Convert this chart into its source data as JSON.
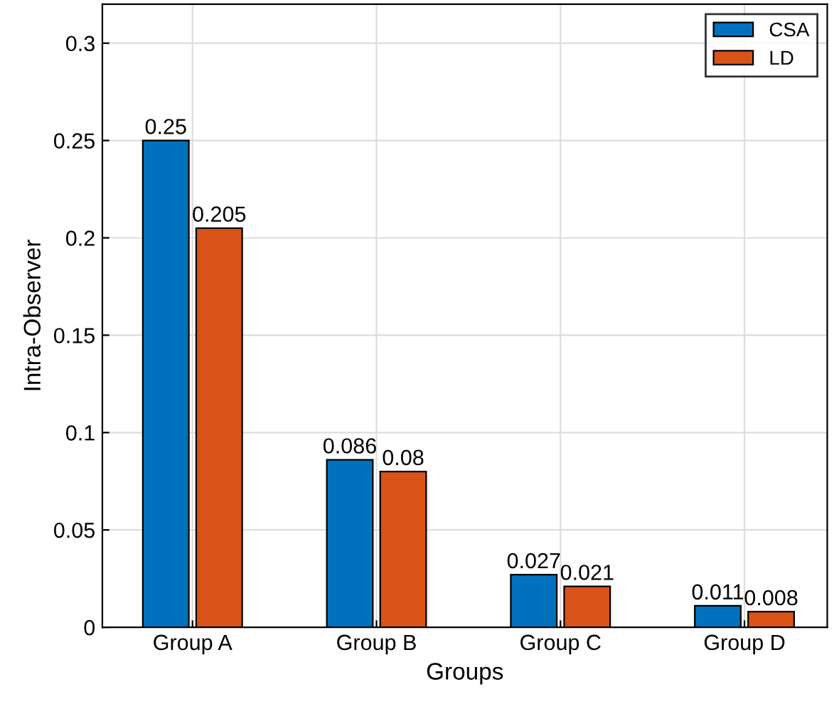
{
  "chart_data": {
    "type": "bar",
    "xlabel": "Groups",
    "ylabel": "Intra-Observer",
    "categories": [
      "Group A",
      "Group B",
      "Group C",
      "Group D"
    ],
    "series": [
      {
        "name": "CSA",
        "color": "#0072bd",
        "values": [
          0.25,
          0.086,
          0.027,
          0.011
        ]
      },
      {
        "name": "LD",
        "color": "#d95319",
        "values": [
          0.205,
          0.08,
          0.021,
          0.008
        ]
      }
    ],
    "ylim": [
      0,
      0.32
    ],
    "yticks": [
      0,
      0.05,
      0.1,
      0.15,
      0.2,
      0.25,
      0.3
    ],
    "grid": true,
    "legend": "top right",
    "data_labels": true
  }
}
